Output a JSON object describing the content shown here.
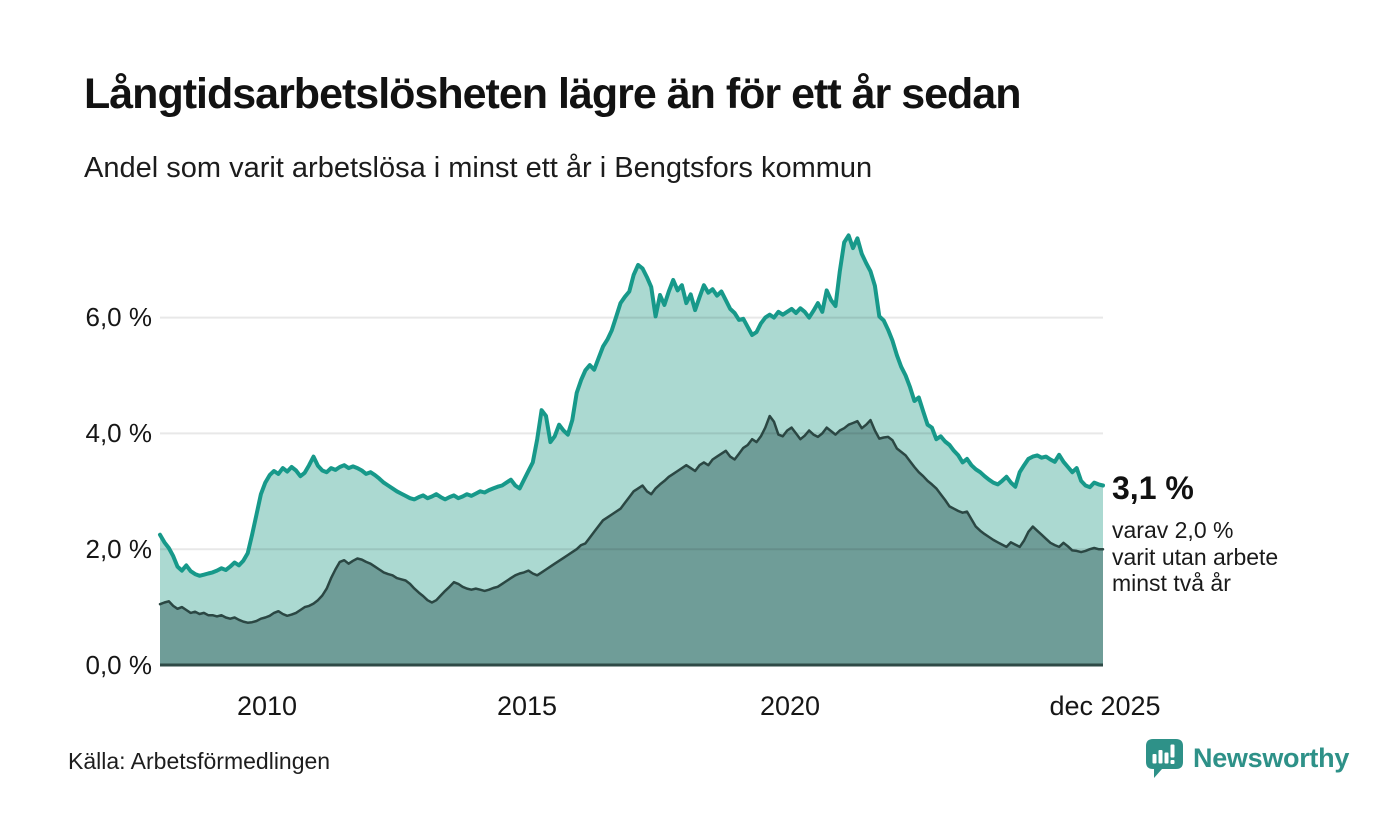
{
  "header": {
    "title": "Långtidsarbetslösheten lägre än för ett år sedan",
    "subtitle": "Andel som varit arbetslösa i minst ett år i Bengtsfors kommun"
  },
  "annotation": {
    "value": "3,1 %",
    "note_lines": [
      "varav 2,0 %",
      "varit utan arbete",
      "minst två år"
    ]
  },
  "footer": {
    "source": "Källa: Arbetsförmedlingen",
    "brand": "Newsworthy"
  },
  "colors": {
    "line_total": "#17998a",
    "fill_total": "#abd9d1",
    "line_two_years": "#2b4743",
    "fill_two_years": "#6f9d98",
    "gridline": "#e4e4e4",
    "baseline": "#2e4a46",
    "brand_teal": "#2e9188",
    "text": "#141414"
  },
  "chart_data": {
    "type": "area",
    "title": "Långtidsarbetslösheten lägre än för ett år sedan",
    "subtitle": "Andel som varit arbetslösa i minst ett år i Bengtsfors kommun",
    "unit": "percent",
    "frequency": "monthly",
    "x_start": "2008-01",
    "x_end": "2025-12",
    "x_ticks": [
      "2010",
      "2015",
      "2020",
      "dec 2025"
    ],
    "y_ticks_top_to_bottom": [
      "6,0 %",
      "4,0 %",
      "2,0 %",
      "0,0 %"
    ],
    "y_tick_values": [
      6,
      4,
      2,
      0
    ],
    "ylim": [
      0,
      7.6
    ],
    "grid": true,
    "end_labels": {
      "total": "3,1 %",
      "two_years": "2,0 %"
    },
    "series": [
      {
        "name": "Andel arbetslösa minst ett år",
        "color": "#17998a",
        "fill": "#abd9d1",
        "values": [
          2.25,
          2.12,
          2.02,
          1.88,
          1.7,
          1.63,
          1.72,
          1.62,
          1.57,
          1.54,
          1.56,
          1.58,
          1.6,
          1.63,
          1.67,
          1.64,
          1.7,
          1.77,
          1.72,
          1.8,
          1.93,
          2.25,
          2.6,
          2.95,
          3.15,
          3.28,
          3.35,
          3.3,
          3.4,
          3.34,
          3.42,
          3.36,
          3.26,
          3.32,
          3.45,
          3.6,
          3.44,
          3.36,
          3.33,
          3.4,
          3.37,
          3.42,
          3.45,
          3.4,
          3.43,
          3.4,
          3.36,
          3.3,
          3.33,
          3.28,
          3.22,
          3.15,
          3.1,
          3.05,
          3.0,
          2.96,
          2.92,
          2.88,
          2.86,
          2.9,
          2.93,
          2.88,
          2.91,
          2.95,
          2.9,
          2.86,
          2.9,
          2.93,
          2.88,
          2.91,
          2.95,
          2.92,
          2.96,
          3.0,
          2.98,
          3.02,
          3.05,
          3.08,
          3.1,
          3.15,
          3.2,
          3.1,
          3.05,
          3.2,
          3.35,
          3.5,
          3.9,
          4.4,
          4.3,
          3.85,
          3.95,
          4.15,
          4.05,
          3.98,
          4.23,
          4.7,
          4.92,
          5.09,
          5.18,
          5.1,
          5.3,
          5.5,
          5.62,
          5.78,
          6.01,
          6.25,
          6.36,
          6.45,
          6.74,
          6.91,
          6.85,
          6.7,
          6.53,
          6.02,
          6.39,
          6.22,
          6.45,
          6.65,
          6.47,
          6.56,
          6.25,
          6.4,
          6.13,
          6.35,
          6.56,
          6.43,
          6.49,
          6.38,
          6.45,
          6.3,
          6.15,
          6.08,
          5.96,
          5.98,
          5.84,
          5.7,
          5.75,
          5.9,
          6.0,
          6.05,
          6.0,
          6.1,
          6.05,
          6.1,
          6.15,
          6.08,
          6.16,
          6.1,
          6.0,
          6.12,
          6.25,
          6.1,
          6.47,
          6.3,
          6.2,
          6.8,
          7.3,
          7.42,
          7.2,
          7.37,
          7.1,
          6.94,
          6.8,
          6.55,
          6.02,
          5.95,
          5.79,
          5.6,
          5.35,
          5.15,
          5.0,
          4.8,
          4.56,
          4.62,
          4.38,
          4.15,
          4.1,
          3.9,
          3.95,
          3.86,
          3.8,
          3.7,
          3.62,
          3.5,
          3.56,
          3.45,
          3.38,
          3.33,
          3.26,
          3.2,
          3.15,
          3.12,
          3.18,
          3.25,
          3.15,
          3.08,
          3.33,
          3.45,
          3.56,
          3.6,
          3.62,
          3.58,
          3.6,
          3.55,
          3.51,
          3.63,
          3.51,
          3.42,
          3.33,
          3.4,
          3.18,
          3.1,
          3.07,
          3.15,
          3.12,
          3.1
        ]
      },
      {
        "name": "Varav arbetslösa minst två år",
        "color": "#2b4743",
        "fill": "#6f9d98",
        "values": [
          1.05,
          1.08,
          1.1,
          1.02,
          0.97,
          1.0,
          0.95,
          0.9,
          0.92,
          0.88,
          0.9,
          0.86,
          0.86,
          0.84,
          0.86,
          0.82,
          0.8,
          0.82,
          0.78,
          0.75,
          0.73,
          0.74,
          0.76,
          0.8,
          0.82,
          0.85,
          0.9,
          0.93,
          0.88,
          0.85,
          0.87,
          0.9,
          0.95,
          1.0,
          1.02,
          1.06,
          1.12,
          1.2,
          1.32,
          1.5,
          1.65,
          1.78,
          1.81,
          1.75,
          1.8,
          1.84,
          1.82,
          1.78,
          1.75,
          1.7,
          1.65,
          1.6,
          1.57,
          1.55,
          1.5,
          1.48,
          1.46,
          1.4,
          1.32,
          1.25,
          1.19,
          1.12,
          1.08,
          1.12,
          1.2,
          1.28,
          1.35,
          1.43,
          1.4,
          1.35,
          1.32,
          1.3,
          1.32,
          1.3,
          1.28,
          1.3,
          1.33,
          1.35,
          1.4,
          1.45,
          1.5,
          1.55,
          1.58,
          1.6,
          1.63,
          1.58,
          1.55,
          1.6,
          1.65,
          1.7,
          1.75,
          1.8,
          1.85,
          1.9,
          1.95,
          2.0,
          2.07,
          2.1,
          2.2,
          2.3,
          2.4,
          2.5,
          2.55,
          2.6,
          2.65,
          2.7,
          2.8,
          2.9,
          3.0,
          3.05,
          3.1,
          3.0,
          2.95,
          3.05,
          3.12,
          3.18,
          3.25,
          3.3,
          3.35,
          3.4,
          3.45,
          3.4,
          3.35,
          3.45,
          3.5,
          3.45,
          3.55,
          3.6,
          3.65,
          3.7,
          3.6,
          3.55,
          3.65,
          3.75,
          3.8,
          3.9,
          3.85,
          3.95,
          4.1,
          4.3,
          4.2,
          3.98,
          3.95,
          4.05,
          4.1,
          4.0,
          3.9,
          3.96,
          4.05,
          3.98,
          3.94,
          4.0,
          4.1,
          4.04,
          3.98,
          4.05,
          4.09,
          4.15,
          4.18,
          4.21,
          4.09,
          4.15,
          4.23,
          4.05,
          3.91,
          3.93,
          3.94,
          3.88,
          3.74,
          3.68,
          3.62,
          3.52,
          3.42,
          3.33,
          3.26,
          3.18,
          3.12,
          3.05,
          2.95,
          2.85,
          2.74,
          2.7,
          2.66,
          2.63,
          2.65,
          2.52,
          2.39,
          2.32,
          2.26,
          2.21,
          2.16,
          2.12,
          2.08,
          2.04,
          2.12,
          2.08,
          2.04,
          2.15,
          2.3,
          2.39,
          2.32,
          2.25,
          2.18,
          2.11,
          2.07,
          2.04,
          2.11,
          2.05,
          1.98,
          1.97,
          1.95,
          1.97,
          2.0,
          2.02,
          2.0,
          2.0
        ]
      }
    ]
  }
}
